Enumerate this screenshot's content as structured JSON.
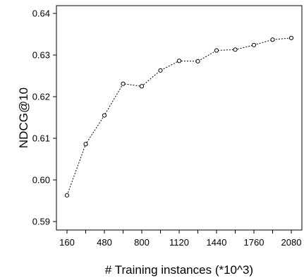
{
  "chart_data": {
    "type": "line",
    "title": "",
    "xlabel": "# Training instances (*10^3)",
    "ylabel": "NDCG@10",
    "x": [
      160,
      320,
      480,
      640,
      800,
      960,
      1120,
      1280,
      1440,
      1600,
      1760,
      1920,
      2080
    ],
    "series": [
      {
        "values": [
          0.5963,
          0.6086,
          0.6155,
          0.6231,
          0.6225,
          0.6263,
          0.6286,
          0.6285,
          0.6311,
          0.6313,
          0.6324,
          0.6337,
          0.6341
        ],
        "line_style": "dotted",
        "marker": "open-circle",
        "color": "#000000"
      }
    ],
    "xlim": [
      160,
      2080
    ],
    "ylim": [
      0.59,
      0.64
    ],
    "xticks": [
      160,
      480,
      800,
      1120,
      1440,
      1760,
      2080
    ],
    "xticks_minor": [
      320,
      640,
      960,
      1280,
      1600,
      1920
    ],
    "yticks": [
      0.59,
      0.6,
      0.61,
      0.62,
      0.63,
      0.64
    ],
    "ytick_labels": [
      "0.59",
      "0.60",
      "0.61",
      "0.62",
      "0.63",
      "0.64"
    ],
    "grid": false,
    "legend": "none"
  }
}
